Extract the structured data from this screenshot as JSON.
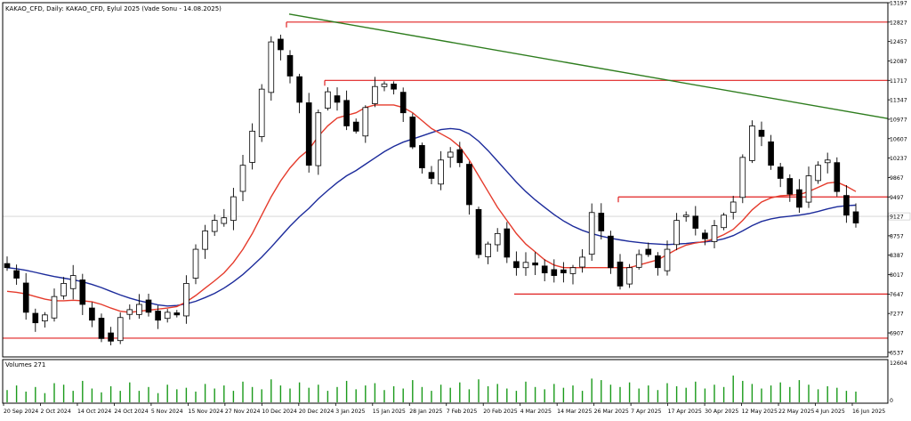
{
  "chart_data": {
    "type": "candlestick",
    "title": "KAKAO_CFD, Daily:  KAKAO_CFD, Eylul 2025 (Vade Sonu - 14.08.2025)",
    "volume_label": "Volumes 271",
    "price_axis_ticks": [
      "13197",
      "12827",
      "12457",
      "12087",
      "11717",
      "11347",
      "10977",
      "10607",
      "10237",
      "9867",
      "9497",
      "9127",
      "8757",
      "8387",
      "8017",
      "7647",
      "7277",
      "6907",
      "6537"
    ],
    "current_price_label": "9127",
    "volume_axis_ticks": [
      "12604",
      "0"
    ],
    "date_labels": [
      "20 Sep 2024",
      "2 Oct 2024",
      "14 Oct 2024",
      "24 Oct 2024",
      "5 Nov 2024",
      "15 Nov 2024",
      "27 Nov 2024",
      "10 Dec 2024",
      "20 Dec 2024",
      "3 Jan 2025",
      "15 Jan 2025",
      "28 Jan 2025",
      "7 Feb 2025",
      "20 Feb 2025",
      "4 Mar 2025",
      "14 Mar 2025",
      "26 Mar 2025",
      "7 Apr 2025",
      "17 Apr 2025",
      "30 Apr 2025",
      "12 May 2025",
      "22 May 2025",
      "4 Jun 2025",
      "16 Jun 2025"
    ],
    "y_range": [
      6450,
      13197
    ],
    "horizontal_levels": [
      12827,
      11717,
      9497,
      7647,
      6807
    ],
    "close_path": [
      8150,
      7950,
      7300,
      7100,
      7250,
      7600,
      7850,
      8000,
      7450,
      7150,
      6800,
      6750,
      7200,
      7350,
      7450,
      7300,
      7150,
      7300,
      7250,
      7850,
      8500,
      8850,
      9050,
      9100,
      9500,
      10100,
      10750,
      11550,
      12450,
      12300,
      11800,
      11300,
      10100,
      11100,
      11500,
      11300,
      10850,
      10750,
      11200,
      11600,
      11650,
      11550,
      11100,
      10450,
      10050,
      9850,
      10200,
      10350,
      10150,
      9350,
      8400,
      8600,
      8800,
      8350,
      8150,
      8250,
      8200,
      8050,
      8000,
      8050,
      8150,
      8350,
      9200,
      8850,
      8150,
      7800,
      8150,
      8400,
      8400,
      8150,
      8500,
      9050,
      9150,
      8900,
      8700,
      8950,
      9150,
      9400,
      10250,
      10850,
      10650,
      10100,
      9850,
      9550,
      9300,
      9900,
      10100,
      10200,
      9600,
      9150,
      9000
    ],
    "ma_fast": [
      7700,
      7680,
      7650,
      7600,
      7550,
      7520,
      7520,
      7530,
      7520,
      7500,
      7450,
      7380,
      7320,
      7300,
      7320,
      7340,
      7360,
      7380,
      7410,
      7500,
      7620,
      7760,
      7900,
      8050,
      8250,
      8500,
      8800,
      9150,
      9500,
      9800,
      10050,
      10250,
      10400,
      10650,
      10850,
      11000,
      11050,
      11100,
      11200,
      11250,
      11250,
      11250,
      11200,
      11100,
      10950,
      10800,
      10700,
      10600,
      10450,
      10200,
      9900,
      9600,
      9300,
      9050,
      8800,
      8600,
      8450,
      8300,
      8200,
      8150,
      8150,
      8150,
      8150,
      8150,
      8150,
      8150,
      8150,
      8200,
      8250,
      8300,
      8400,
      8500,
      8580,
      8620,
      8650,
      8700,
      8780,
      8880,
      9050,
      9250,
      9400,
      9480,
      9520,
      9530,
      9540,
      9600,
      9680,
      9760,
      9780,
      9700,
      9600
    ],
    "ma_slow": [
      8150,
      8130,
      8100,
      8060,
      8020,
      7980,
      7950,
      7920,
      7880,
      7830,
      7770,
      7700,
      7630,
      7570,
      7520,
      7480,
      7440,
      7420,
      7430,
      7460,
      7510,
      7580,
      7660,
      7760,
      7880,
      8020,
      8180,
      8350,
      8540,
      8740,
      8940,
      9120,
      9280,
      9460,
      9620,
      9770,
      9900,
      10000,
      10120,
      10240,
      10360,
      10460,
      10540,
      10600,
      10660,
      10720,
      10780,
      10800,
      10780,
      10700,
      10560,
      10380,
      10180,
      9980,
      9780,
      9600,
      9440,
      9300,
      9160,
      9040,
      8940,
      8860,
      8800,
      8750,
      8710,
      8680,
      8650,
      8630,
      8610,
      8600,
      8590,
      8600,
      8610,
      8630,
      8640,
      8660,
      8700,
      8760,
      8850,
      8950,
      9030,
      9080,
      9110,
      9130,
      9150,
      9180,
      9220,
      9270,
      9310,
      9330,
      9340
    ],
    "volume_relative": [
      0.32,
      0.44,
      0.28,
      0.4,
      0.24,
      0.5,
      0.46,
      0.3,
      0.56,
      0.36,
      0.26,
      0.42,
      0.3,
      0.52,
      0.3,
      0.4,
      0.24,
      0.46,
      0.34,
      0.38,
      0.28,
      0.48,
      0.36,
      0.44,
      0.3,
      0.54,
      0.4,
      0.34,
      0.6,
      0.44,
      0.36,
      0.52,
      0.38,
      0.46,
      0.3,
      0.4,
      0.56,
      0.34,
      0.44,
      0.5,
      0.32,
      0.42,
      0.36,
      0.58,
      0.4,
      0.3,
      0.46,
      0.38,
      0.52,
      0.34,
      0.6,
      0.42,
      0.48,
      0.36,
      0.3,
      0.54,
      0.4,
      0.34,
      0.48,
      0.38,
      0.44,
      0.3,
      0.62,
      0.58,
      0.46,
      0.4,
      0.52,
      0.36,
      0.44,
      0.32,
      0.5,
      0.42,
      0.38,
      0.54,
      0.36,
      0.46,
      0.4,
      0.7,
      0.56,
      0.48,
      0.36,
      0.44,
      0.52,
      0.4,
      0.58,
      0.46,
      0.34,
      0.42,
      0.38,
      0.3,
      0.28
    ],
    "colors": {
      "bull": "#ffffff",
      "bear": "#000000",
      "ma_fast": "#e53b2c",
      "ma_slow": "#1c2b9b",
      "levels": "#e02020",
      "trendline": "#2e7d1e",
      "volume": "#1a9a1a",
      "axis": "#000000",
      "current_price_line": "#c0c0c0"
    }
  }
}
